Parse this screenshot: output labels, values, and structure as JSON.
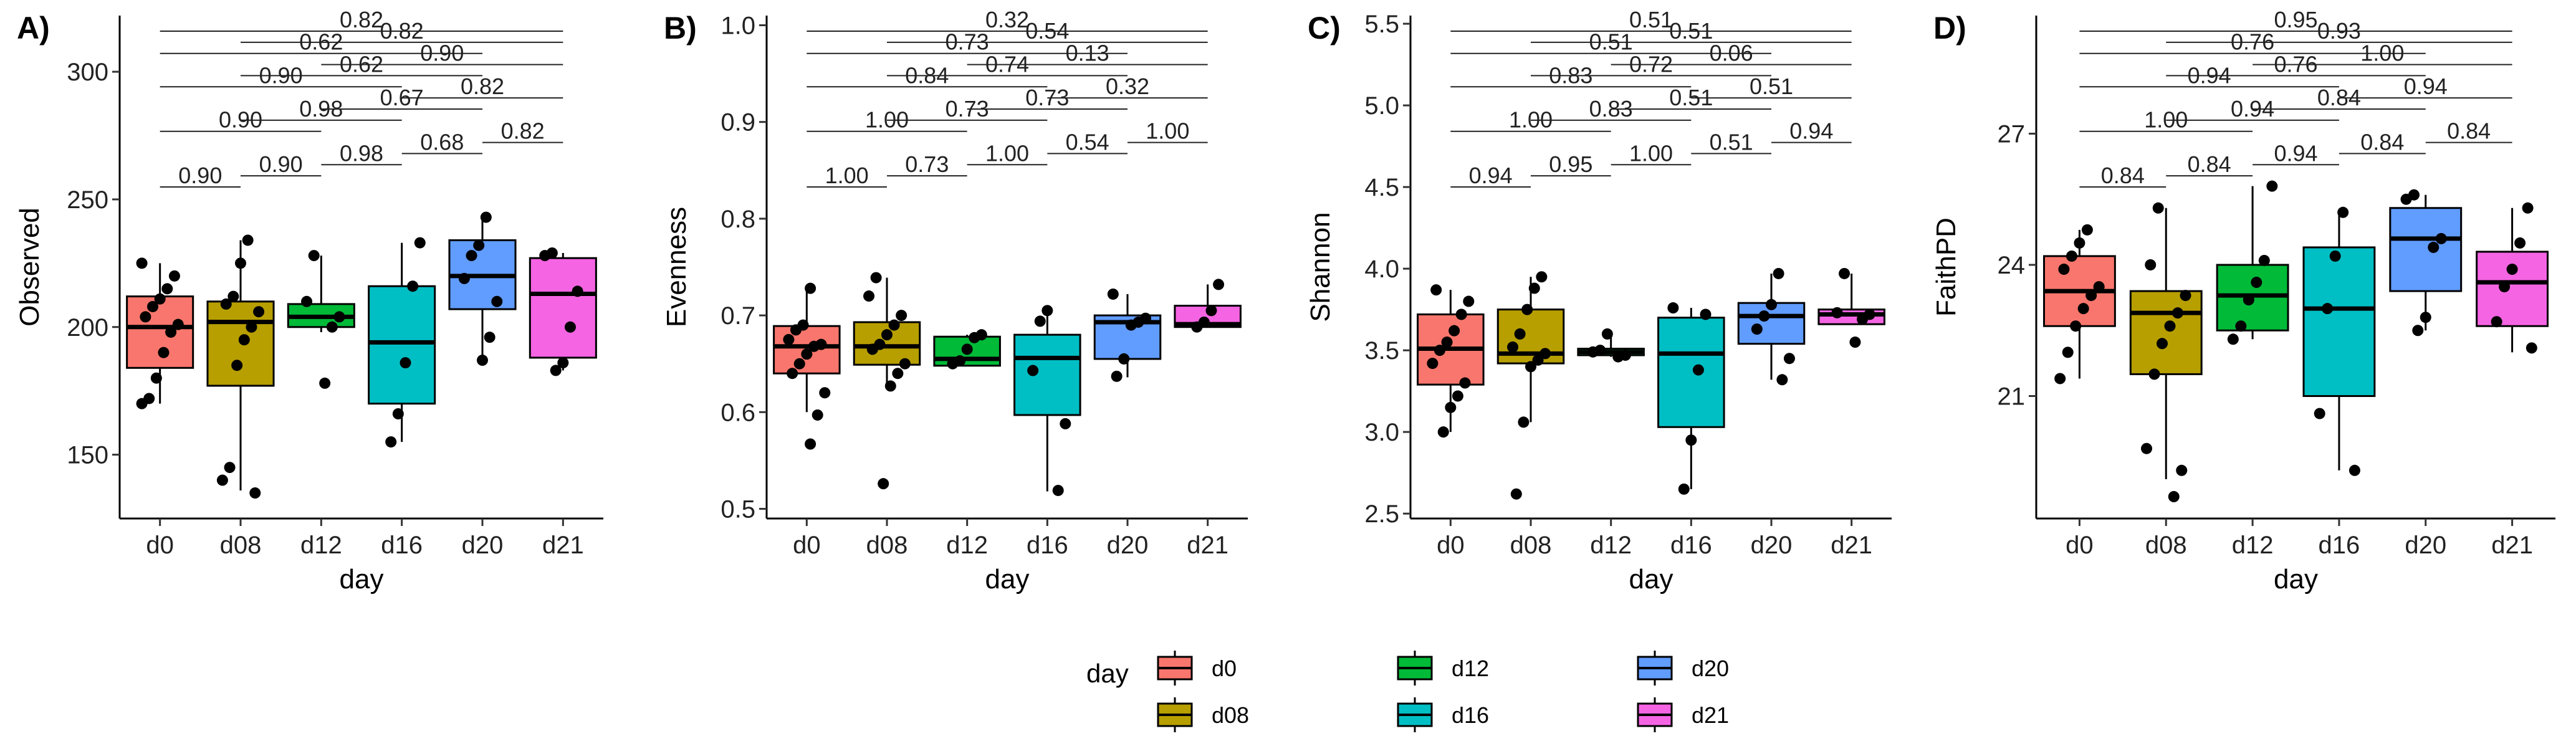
{
  "chart_data": [
    {
      "panel": "A)",
      "type": "box",
      "xlabel": "day",
      "ylabel": "Observed",
      "ylim": [
        125,
        322
      ],
      "yticks": [
        150,
        200,
        250,
        300
      ],
      "categories": [
        "d0",
        "d08",
        "d12",
        "d16",
        "d20",
        "d21"
      ],
      "boxes": [
        {
          "q1": 184,
          "median": 200,
          "q3": 212,
          "whisker_low": 170,
          "whisker_high": 225
        },
        {
          "q1": 177,
          "median": 202,
          "q3": 210,
          "whisker_low": 136,
          "whisker_high": 234
        },
        {
          "q1": 200,
          "median": 204,
          "q3": 209,
          "whisker_low": 198,
          "whisker_high": 228
        },
        {
          "q1": 170,
          "median": 194,
          "q3": 216,
          "whisker_low": 155,
          "whisker_high": 233
        },
        {
          "q1": 207,
          "median": 220,
          "q3": 234,
          "whisker_low": 187,
          "whisker_high": 243
        },
        {
          "q1": 188,
          "median": 213,
          "q3": 227,
          "whisker_low": 183,
          "whisker_high": 229
        }
      ],
      "points": [
        [
          225,
          220,
          215,
          211,
          208,
          204,
          201,
          198,
          190,
          180,
          172,
          170
        ],
        [
          234,
          225,
          212,
          209,
          206,
          200,
          195,
          185,
          145,
          140,
          135
        ],
        [
          228,
          210,
          204,
          200,
          178
        ],
        [
          233,
          216,
          186,
          166,
          155
        ],
        [
          243,
          232,
          228,
          219,
          210,
          196,
          187
        ],
        [
          229,
          228,
          214,
          200,
          186,
          183
        ]
      ],
      "comparisons": [
        {
          "pair": [
            "d0",
            "d08"
          ],
          "p": "0.90"
        },
        {
          "pair": [
            "d0",
            "d12"
          ],
          "p": "0.90"
        },
        {
          "pair": [
            "d0",
            "d16"
          ],
          "p": "0.90"
        },
        {
          "pair": [
            "d0",
            "d20"
          ],
          "p": "0.62"
        },
        {
          "pair": [
            "d0",
            "d21"
          ],
          "p": "0.82"
        },
        {
          "pair": [
            "d08",
            "d12"
          ],
          "p": "0.90"
        },
        {
          "pair": [
            "d08",
            "d16"
          ],
          "p": "0.98"
        },
        {
          "pair": [
            "d08",
            "d20"
          ],
          "p": "0.62"
        },
        {
          "pair": [
            "d08",
            "d21"
          ],
          "p": "0.82"
        },
        {
          "pair": [
            "d12",
            "d16"
          ],
          "p": "0.98"
        },
        {
          "pair": [
            "d12",
            "d20"
          ],
          "p": "0.67"
        },
        {
          "pair": [
            "d12",
            "d21"
          ],
          "p": "0.90"
        },
        {
          "pair": [
            "d16",
            "d20"
          ],
          "p": "0.68"
        },
        {
          "pair": [
            "d16",
            "d21"
          ],
          "p": "0.82"
        },
        {
          "pair": [
            "d20",
            "d21"
          ],
          "p": "0.82"
        }
      ]
    },
    {
      "panel": "B)",
      "type": "box",
      "xlabel": "day",
      "ylabel": "Evenness",
      "ylim": [
        0.49,
        1.01
      ],
      "yticks": [
        "0.5",
        "0.6",
        "0.7",
        "0.8",
        "0.9",
        "1.0"
      ],
      "categories": [
        "d0",
        "d08",
        "d12",
        "d16",
        "d20",
        "d21"
      ],
      "boxes": [
        {
          "q1": 0.64,
          "median": 0.668,
          "q3": 0.689,
          "whisker_low": 0.6,
          "whisker_high": 0.728
        },
        {
          "q1": 0.649,
          "median": 0.668,
          "q3": 0.693,
          "whisker_low": 0.627,
          "whisker_high": 0.739
        },
        {
          "q1": 0.648,
          "median": 0.655,
          "q3": 0.678,
          "whisker_low": 0.648,
          "whisker_high": 0.68
        },
        {
          "q1": 0.597,
          "median": 0.656,
          "q3": 0.68,
          "whisker_low": 0.518,
          "whisker_high": 0.705
        },
        {
          "q1": 0.655,
          "median": 0.693,
          "q3": 0.7,
          "whisker_low": 0.636,
          "whisker_high": 0.722
        },
        {
          "q1": 0.688,
          "median": 0.691,
          "q3": 0.71,
          "whisker_low": 0.688,
          "whisker_high": 0.732
        }
      ],
      "points": [
        [
          0.728,
          0.69,
          0.685,
          0.675,
          0.67,
          0.668,
          0.66,
          0.65,
          0.64,
          0.62,
          0.597,
          0.567
        ],
        [
          0.739,
          0.72,
          0.7,
          0.69,
          0.68,
          0.67,
          0.665,
          0.65,
          0.64,
          0.627,
          0.526
        ],
        [
          0.68,
          0.677,
          0.665,
          0.653,
          0.65
        ],
        [
          0.705,
          0.694,
          0.643,
          0.588,
          0.519
        ],
        [
          0.722,
          0.697,
          0.693,
          0.69,
          0.655,
          0.637
        ],
        [
          0.732,
          0.705,
          0.693,
          0.688
        ]
      ],
      "comparisons": [
        {
          "pair": [
            "d0",
            "d08"
          ],
          "p": "1.00"
        },
        {
          "pair": [
            "d0",
            "d12"
          ],
          "p": "1.00"
        },
        {
          "pair": [
            "d0",
            "d16"
          ],
          "p": "0.84"
        },
        {
          "pair": [
            "d0",
            "d20"
          ],
          "p": "0.73"
        },
        {
          "pair": [
            "d0",
            "d21"
          ],
          "p": "0.32"
        },
        {
          "pair": [
            "d08",
            "d12"
          ],
          "p": "0.73"
        },
        {
          "pair": [
            "d08",
            "d16"
          ],
          "p": "0.73"
        },
        {
          "pair": [
            "d08",
            "d20"
          ],
          "p": "0.74"
        },
        {
          "pair": [
            "d08",
            "d21"
          ],
          "p": "0.54"
        },
        {
          "pair": [
            "d12",
            "d16"
          ],
          "p": "1.00"
        },
        {
          "pair": [
            "d12",
            "d20"
          ],
          "p": "0.73"
        },
        {
          "pair": [
            "d12",
            "d21"
          ],
          "p": "0.13"
        },
        {
          "pair": [
            "d16",
            "d20"
          ],
          "p": "0.54"
        },
        {
          "pair": [
            "d16",
            "d21"
          ],
          "p": "0.32"
        },
        {
          "pair": [
            "d20",
            "d21"
          ],
          "p": "1.00"
        }
      ]
    },
    {
      "panel": "C)",
      "type": "box",
      "xlabel": "day",
      "ylabel": "Shannon",
      "ylim": [
        2.47,
        5.55
      ],
      "yticks": [
        "2.5",
        "3.0",
        "3.5",
        "4.0",
        "4.5",
        "5.0",
        "5.5"
      ],
      "categories": [
        "d0",
        "d08",
        "d12",
        "d16",
        "d20",
        "d21"
      ],
      "boxes": [
        {
          "q1": 3.29,
          "median": 3.51,
          "q3": 3.72,
          "whisker_low": 3.0,
          "whisker_high": 3.87
        },
        {
          "q1": 3.42,
          "median": 3.48,
          "q3": 3.75,
          "whisker_low": 3.06,
          "whisker_high": 3.95
        },
        {
          "q1": 3.47,
          "median": 3.49,
          "q3": 3.51,
          "whisker_low": 3.46,
          "whisker_high": 3.6
        },
        {
          "q1": 3.03,
          "median": 3.48,
          "q3": 3.7,
          "whisker_low": 2.65,
          "whisker_high": 3.76
        },
        {
          "q1": 3.54,
          "median": 3.71,
          "q3": 3.79,
          "whisker_low": 3.32,
          "whisker_high": 3.97
        },
        {
          "q1": 3.66,
          "median": 3.72,
          "q3": 3.75,
          "whisker_low": 3.66,
          "whisker_high": 3.97
        }
      ],
      "points": [
        [
          3.87,
          3.8,
          3.72,
          3.62,
          3.55,
          3.5,
          3.42,
          3.3,
          3.22,
          3.15,
          3.0
        ],
        [
          3.95,
          3.88,
          3.75,
          3.6,
          3.52,
          3.48,
          3.44,
          3.4,
          3.06,
          2.62
        ],
        [
          3.6,
          3.5,
          3.49,
          3.47,
          3.46
        ],
        [
          3.76,
          3.72,
          3.38,
          2.95,
          2.65
        ],
        [
          3.97,
          3.78,
          3.71,
          3.63,
          3.45,
          3.32
        ],
        [
          3.97,
          3.73,
          3.72,
          3.69,
          3.55
        ]
      ],
      "comparisons": [
        {
          "pair": [
            "d0",
            "d08"
          ],
          "p": "0.94"
        },
        {
          "pair": [
            "d0",
            "d12"
          ],
          "p": "1.00"
        },
        {
          "pair": [
            "d0",
            "d16"
          ],
          "p": "0.83"
        },
        {
          "pair": [
            "d0",
            "d20"
          ],
          "p": "0.51"
        },
        {
          "pair": [
            "d0",
            "d21"
          ],
          "p": "0.51"
        },
        {
          "pair": [
            "d08",
            "d12"
          ],
          "p": "0.95"
        },
        {
          "pair": [
            "d08",
            "d16"
          ],
          "p": "0.83"
        },
        {
          "pair": [
            "d08",
            "d20"
          ],
          "p": "0.72"
        },
        {
          "pair": [
            "d08",
            "d21"
          ],
          "p": "0.51"
        },
        {
          "pair": [
            "d12",
            "d16"
          ],
          "p": "1.00"
        },
        {
          "pair": [
            "d12",
            "d20"
          ],
          "p": "0.51"
        },
        {
          "pair": [
            "d12",
            "d21"
          ],
          "p": "0.06"
        },
        {
          "pair": [
            "d16",
            "d20"
          ],
          "p": "0.51"
        },
        {
          "pair": [
            "d16",
            "d21"
          ],
          "p": "0.51"
        },
        {
          "pair": [
            "d20",
            "d21"
          ],
          "p": "0.94"
        }
      ]
    },
    {
      "panel": "D)",
      "type": "box",
      "xlabel": "day",
      "ylabel": "FaithPD",
      "ylim": [
        18.2,
        29.7
      ],
      "yticks": [
        21,
        24,
        27
      ],
      "categories": [
        "d0",
        "d08",
        "d12",
        "d16",
        "d20",
        "d21"
      ],
      "boxes": [
        {
          "q1": 22.6,
          "median": 23.4,
          "q3": 24.2,
          "whisker_low": 21.4,
          "whisker_high": 24.8
        },
        {
          "q1": 21.5,
          "median": 22.9,
          "q3": 23.4,
          "whisker_low": 19.1,
          "whisker_high": 25.3
        },
        {
          "q1": 22.5,
          "median": 23.3,
          "q3": 24.0,
          "whisker_low": 22.3,
          "whisker_high": 25.8
        },
        {
          "q1": 21.0,
          "median": 23.0,
          "q3": 24.4,
          "whisker_low": 19.3,
          "whisker_high": 25.2
        },
        {
          "q1": 23.4,
          "median": 24.6,
          "q3": 25.3,
          "whisker_low": 22.5,
          "whisker_high": 25.6
        },
        {
          "q1": 22.6,
          "median": 23.6,
          "q3": 24.3,
          "whisker_low": 22.0,
          "whisker_high": 25.3
        }
      ],
      "points": [
        [
          24.8,
          24.5,
          24.2,
          23.9,
          23.5,
          23.3,
          23.0,
          22.6,
          22.0,
          21.4
        ],
        [
          25.3,
          24.0,
          23.3,
          22.9,
          22.6,
          22.2,
          21.5,
          19.8,
          19.3,
          18.7
        ],
        [
          25.8,
          24.1,
          23.6,
          23.2,
          22.6,
          22.3
        ],
        [
          25.2,
          24.2,
          23.0,
          20.6,
          19.3
        ],
        [
          25.6,
          25.5,
          24.6,
          24.4,
          22.8,
          22.5
        ],
        [
          25.3,
          24.5,
          23.9,
          23.5,
          22.7,
          22.1
        ]
      ],
      "comparisons": [
        {
          "pair": [
            "d0",
            "d08"
          ],
          "p": "0.84"
        },
        {
          "pair": [
            "d0",
            "d12"
          ],
          "p": "1.00"
        },
        {
          "pair": [
            "d0",
            "d16"
          ],
          "p": "0.94"
        },
        {
          "pair": [
            "d0",
            "d20"
          ],
          "p": "0.76"
        },
        {
          "pair": [
            "d0",
            "d21"
          ],
          "p": "0.95"
        },
        {
          "pair": [
            "d08",
            "d12"
          ],
          "p": "0.84"
        },
        {
          "pair": [
            "d08",
            "d16"
          ],
          "p": "0.94"
        },
        {
          "pair": [
            "d08",
            "d20"
          ],
          "p": "0.76"
        },
        {
          "pair": [
            "d08",
            "d21"
          ],
          "p": "0.93"
        },
        {
          "pair": [
            "d12",
            "d16"
          ],
          "p": "0.94"
        },
        {
          "pair": [
            "d12",
            "d20"
          ],
          "p": "0.84"
        },
        {
          "pair": [
            "d12",
            "d21"
          ],
          "p": "1.00"
        },
        {
          "pair": [
            "d16",
            "d20"
          ],
          "p": "0.84"
        },
        {
          "pair": [
            "d16",
            "d21"
          ],
          "p": "0.94"
        },
        {
          "pair": [
            "d20",
            "d21"
          ],
          "p": "0.84"
        }
      ]
    }
  ],
  "legend": {
    "title": "day",
    "items": [
      {
        "label": "d0",
        "color": "#F8766D"
      },
      {
        "label": "d08",
        "color": "#B79F00"
      },
      {
        "label": "d12",
        "color": "#00BA38"
      },
      {
        "label": "d16",
        "color": "#00BFC4"
      },
      {
        "label": "d20",
        "color": "#619CFF"
      },
      {
        "label": "d21",
        "color": "#F564E3"
      }
    ]
  }
}
